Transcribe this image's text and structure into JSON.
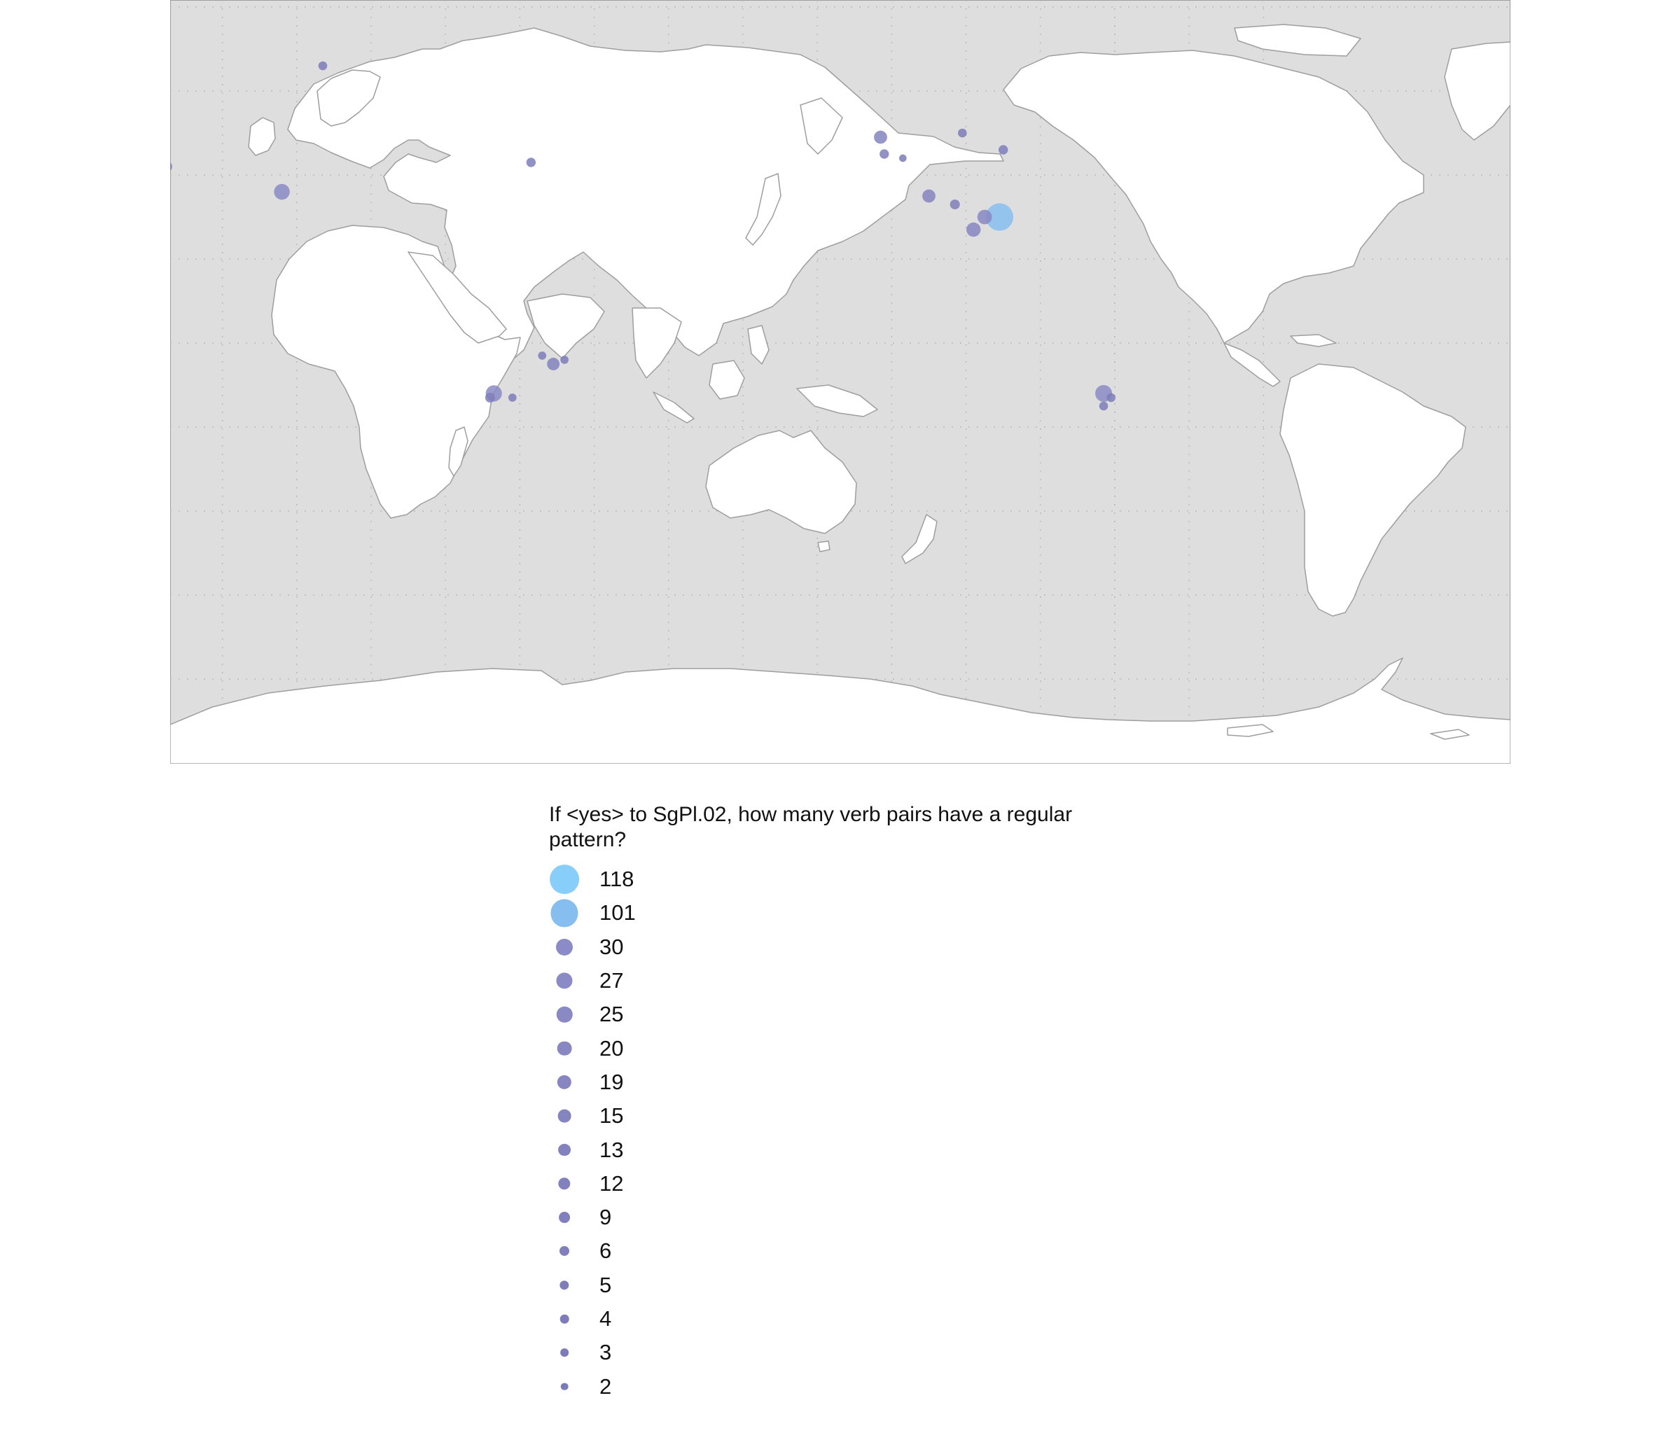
{
  "map": {
    "background_color": "#dedede",
    "land_color": "#ffffff",
    "border_color": "#9e9e9e",
    "projection": "Pacific-centred equirectangular world map",
    "points": [
      {
        "name": "Siberia",
        "lon": 87,
        "lat": 66,
        "value": 4
      },
      {
        "name": "Caucasus",
        "lon": 45,
        "lat": 42,
        "value": 9
      },
      {
        "name": "Central Asia",
        "lon": 76,
        "lat": 36,
        "value": 25
      },
      {
        "name": "Central Africa",
        "lon": 21,
        "lat": 8,
        "value": 118
      },
      {
        "name": "Sudan",
        "lon": 32,
        "lat": 9,
        "value": 6
      },
      {
        "name": "Ethiopia",
        "lon": 39,
        "lat": 12,
        "value": 6
      },
      {
        "name": "Northern Japan",
        "lon": 143,
        "lat": 43,
        "value": 5
      },
      {
        "name": "New Guinea",
        "lon": 149,
        "lat": -5,
        "value": 13
      },
      {
        "name": "Island New Guinea",
        "lon": 146,
        "lat": -3,
        "value": 3
      },
      {
        "name": "New Britain",
        "lon": 152,
        "lat": -4,
        "value": 3
      },
      {
        "name": "Arnhem Land",
        "lon": 133,
        "lat": -12,
        "value": 27
      },
      {
        "name": "Arnhem Land West",
        "lon": 132,
        "lat": -13,
        "value": 6
      },
      {
        "name": "Gulf of Carpentaria",
        "lon": 138,
        "lat": -13,
        "value": 3
      },
      {
        "name": "British Columbia",
        "lon": -123,
        "lat": 49,
        "value": 15
      },
      {
        "name": "Oregon",
        "lon": -122,
        "lat": 45,
        "value": 5
      },
      {
        "name": "Oregon East",
        "lon": -117,
        "lat": 44,
        "value": 2
      },
      {
        "name": "Plains",
        "lon": -101,
        "lat": 50,
        "value": 4
      },
      {
        "name": "Great Lakes",
        "lon": -90,
        "lat": 46,
        "value": 5
      },
      {
        "name": "Arizona",
        "lon": -110,
        "lat": 35,
        "value": 15
      },
      {
        "name": "Oklahoma",
        "lon": -103,
        "lat": 33,
        "value": 6
      },
      {
        "name": "Louisiana",
        "lon": -95,
        "lat": 30,
        "value": 20
      },
      {
        "name": "Gulf Coast",
        "lon": -91,
        "lat": 30,
        "value": 101
      },
      {
        "name": "Texas",
        "lon": -98,
        "lat": 27,
        "value": 19
      },
      {
        "name": "Bolivia",
        "lon": -63,
        "lat": -12,
        "value": 30
      },
      {
        "name": "Mato Grosso",
        "lon": -61,
        "lat": -13,
        "value": 4
      },
      {
        "name": "Chaco",
        "lon": -63,
        "lat": -15,
        "value": 4
      }
    ]
  },
  "legend": {
    "title": "If <yes> to SgPl.02, how many verb pairs have a regular\npattern?",
    "items": [
      {
        "label": "118",
        "value": 118,
        "color": "#87cefa"
      },
      {
        "label": "101",
        "value": 101,
        "color": "#87bef0"
      },
      {
        "label": "30",
        "value": 30,
        "color": "#8b8bc7"
      },
      {
        "label": "27",
        "value": 27,
        "color": "#8a8ac6"
      },
      {
        "label": "25",
        "value": 25,
        "color": "#8a89c4"
      },
      {
        "label": "20",
        "value": 20,
        "color": "#8887c2"
      },
      {
        "label": "19",
        "value": 19,
        "color": "#8886c1"
      },
      {
        "label": "15",
        "value": 15,
        "color": "#8484bf"
      },
      {
        "label": "13",
        "value": 13,
        "color": "#8382be"
      },
      {
        "label": "12",
        "value": 12,
        "color": "#8281bd"
      },
      {
        "label": "9",
        "value": 9,
        "color": "#8180bc"
      },
      {
        "label": "6",
        "value": 6,
        "color": "#807fbb"
      },
      {
        "label": "5",
        "value": 5,
        "color": "#7f7ebb"
      },
      {
        "label": "4",
        "value": 4,
        "color": "#7e7dba"
      },
      {
        "label": "3",
        "value": 3,
        "color": "#7d7cba"
      },
      {
        "label": "2",
        "value": 2,
        "color": "#7c7bb9"
      }
    ]
  }
}
